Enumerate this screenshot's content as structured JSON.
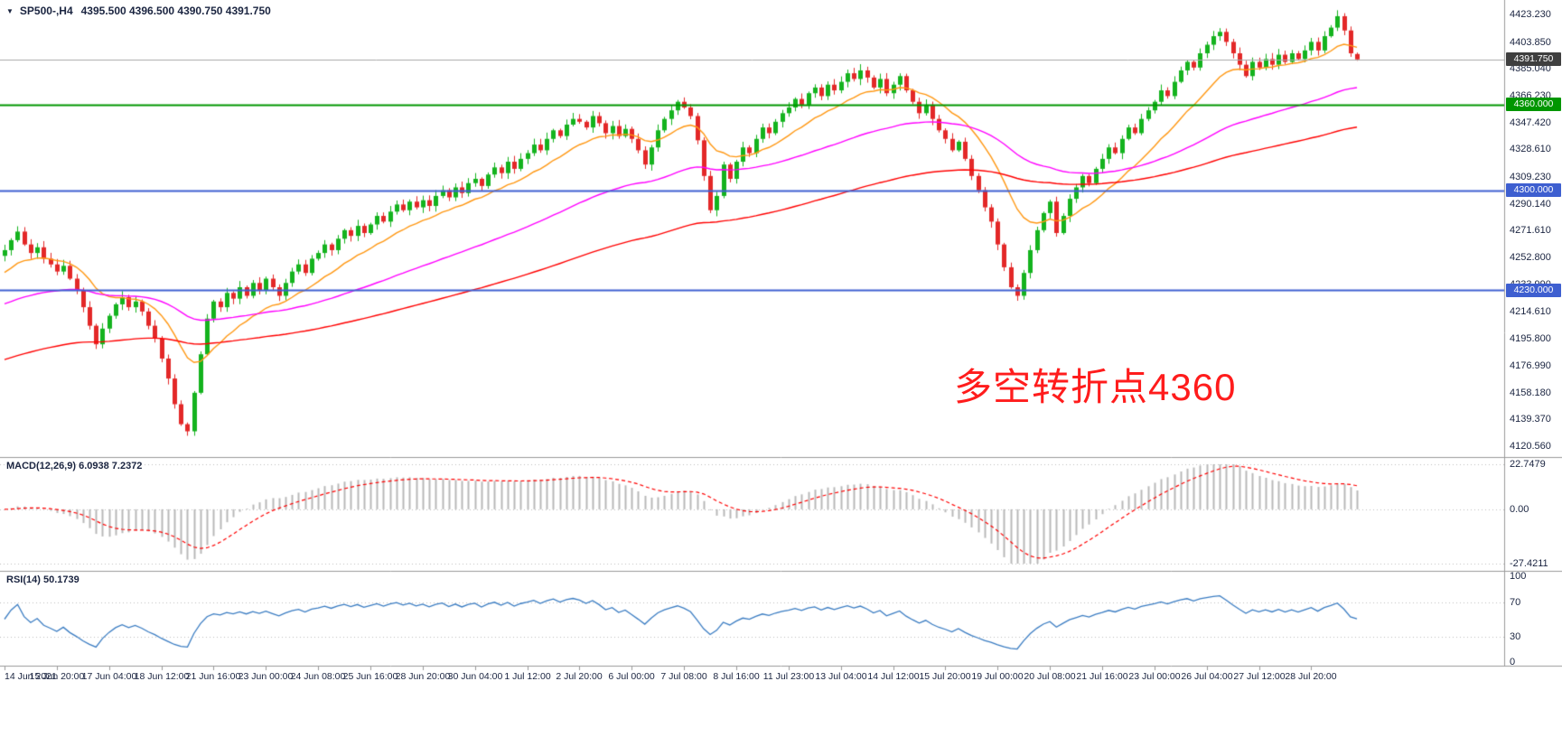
{
  "titlebar": {
    "symbol": "SP500-,H4",
    "ohlc": "4395.500 4396.500 4390.750 4391.750"
  },
  "annotation": {
    "text": "多空转折点4360"
  },
  "panels": {
    "macd_label": "MACD(12,26,9) 6.0938 7.2372",
    "rsi_label": "RSI(14) 50.1739"
  },
  "chart_data": {
    "type": "candlestick",
    "symbol": "SP500-",
    "timeframe": "H4",
    "last_candle": {
      "open": 4395.5,
      "high": 4396.5,
      "low": 4390.75,
      "close": 4391.75
    },
    "current_price": {
      "value": 4391.75,
      "label": "4391.750"
    },
    "y_axis": {
      "top": 4423.23,
      "bottom": 4120.56,
      "labels": [
        "4423.230",
        "4403.850",
        "4385.040",
        "4366.230",
        "4347.420",
        "4328.610",
        "4309.230",
        "4290.140",
        "4271.610",
        "4252.800",
        "4233.990",
        "4214.610",
        "4195.800",
        "4176.990",
        "4158.180",
        "4139.370",
        "4120.560"
      ]
    },
    "x_ticks": [
      "14 Jun 2021",
      "15 Jun 20:00",
      "17 Jun 04:00",
      "18 Jun 12:00",
      "21 Jun 16:00",
      "23 Jun 00:00",
      "24 Jun 08:00",
      "25 Jun 16:00",
      "28 Jun 20:00",
      "30 Jun 04:00",
      "1 Jul 12:00",
      "2 Jul 20:00",
      "6 Jul 00:00",
      "7 Jul 08:00",
      "8 Jul 16:00",
      "11 Jul 23:00",
      "13 Jul 04:00",
      "14 Jul 12:00",
      "15 Jul 20:00",
      "19 Jul 00:00",
      "20 Jul 08:00",
      "21 Jul 16:00",
      "23 Jul 00:00",
      "26 Jul 04:00",
      "27 Jul 12:00",
      "28 Jul 20:00"
    ],
    "candles_per_tick": 8,
    "closes": [
      4258,
      4265,
      4271,
      4262,
      4256,
      4260,
      4252,
      4248,
      4243,
      4247,
      4238,
      4230,
      4218,
      4205,
      4192,
      4203,
      4212,
      4220,
      4225,
      4218,
      4222,
      4215,
      4205,
      4196,
      4182,
      4168,
      4150,
      4136,
      4131,
      4158,
      4185,
      4210,
      4222,
      4218,
      4228,
      4224,
      4232,
      4226,
      4235,
      4230,
      4238,
      4232,
      4226,
      4235,
      4243,
      4248,
      4242,
      4252,
      4256,
      4262,
      4258,
      4266,
      4272,
      4268,
      4275,
      4270,
      4276,
      4282,
      4278,
      4285,
      4290,
      4286,
      4292,
      4288,
      4293,
      4289,
      4296,
      4300,
      4295,
      4302,
      4298,
      4305,
      4308,
      4303,
      4311,
      4316,
      4312,
      4320,
      4315,
      4322,
      4326,
      4332,
      4328,
      4336,
      4342,
      4338,
      4346,
      4350,
      4348,
      4344,
      4352,
      4347,
      4340,
      4345,
      4338,
      4343,
      4336,
      4328,
      4318,
      4330,
      4342,
      4350,
      4356,
      4362,
      4358,
      4352,
      4335,
      4310,
      4286,
      4296,
      4318,
      4308,
      4320,
      4330,
      4326,
      4336,
      4344,
      4340,
      4348,
      4354,
      4358,
      4364,
      4360,
      4368,
      4372,
      4366,
      4374,
      4370,
      4376,
      4382,
      4378,
      4384,
      4379,
      4372,
      4378,
      4368,
      4374,
      4380,
      4370,
      4362,
      4354,
      4360,
      4350,
      4342,
      4336,
      4328,
      4334,
      4322,
      4310,
      4300,
      4288,
      4278,
      4262,
      4246,
      4232,
      4226,
      4242,
      4258,
      4272,
      4284,
      4292,
      4270,
      4282,
      4294,
      4302,
      4310,
      4305,
      4315,
      4322,
      4330,
      4326,
      4336,
      4344,
      4340,
      4350,
      4356,
      4362,
      4370,
      4366,
      4376,
      4384,
      4390,
      4386,
      4396,
      4402,
      4408,
      4411,
      4404,
      4396,
      4388,
      4380,
      4390,
      4386,
      4392,
      4388,
      4395,
      4390,
      4396,
      4392,
      4398,
      4404,
      4398,
      4408,
      4414,
      4422,
      4412,
      4396,
      4391.75
    ],
    "horizontal_lines": [
      {
        "value": 4360,
        "label": "4360.000",
        "color": "#009600"
      },
      {
        "value": 4300,
        "label": "4300.000",
        "color": "#3e5fd0"
      },
      {
        "value": 4230,
        "label": "4230.000",
        "color": "#3e5fd0"
      }
    ],
    "moving_averages": [
      {
        "name": "fast-ma",
        "period": 14,
        "seed": 4240,
        "color": "#ff9712"
      },
      {
        "name": "medium-ma",
        "period": 55,
        "seed": 4219,
        "color": "#ff00ff"
      },
      {
        "name": "slow-ma",
        "period": 120,
        "seed": 4180,
        "color": "#ff0000"
      }
    ],
    "macd": {
      "fast": 12,
      "slow": 26,
      "signal": 9,
      "current_main": 6.0938,
      "current_signal": 7.2372,
      "axis_max": 22.7479,
      "axis_min": -27.4211,
      "axis_labels": [
        "22.7479",
        "0.00",
        "-27.4211"
      ]
    },
    "rsi": {
      "period": 14,
      "current": 50.1739,
      "levels": [
        100,
        70,
        30,
        0
      ],
      "level_labels": [
        "100",
        "70",
        "30",
        "0"
      ],
      "dashed_levels": [
        70,
        30
      ]
    },
    "colors": {
      "up": "#14b31e",
      "down": "#e32828",
      "ma_fast": "#ff9712",
      "ma_mid": "#ff00ff",
      "ma_slow": "#ff0000",
      "macd_hist": "#b8b8b8",
      "macd_signal": "#ff0000",
      "rsi_line": "#3a7cc2",
      "bid_line": "#a8a8a8",
      "grid": "#bdbdbd",
      "border": "#9a9a9a",
      "text": "#1a2440",
      "annotation": "#ff1c1c",
      "badge_current_bg": "#3f3f3f"
    }
  }
}
